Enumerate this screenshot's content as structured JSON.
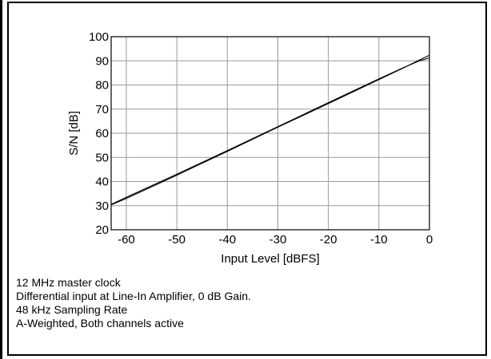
{
  "chart_data": {
    "type": "line",
    "title": "",
    "xlabel": "Input Level [dBFS]",
    "ylabel": "S/N [dB]",
    "xlim": [
      -63,
      0
    ],
    "ylim": [
      20,
      100
    ],
    "x_ticks": [
      -60,
      -50,
      -40,
      -30,
      -20,
      -10,
      0
    ],
    "y_ticks": [
      20,
      30,
      40,
      50,
      60,
      70,
      80,
      90,
      100
    ],
    "grid": true,
    "series": [
      {
        "x": [
          -63,
          -60,
          -50,
          -40,
          -30,
          -20,
          -10,
          -5,
          -2,
          0
        ],
        "y": [
          30.5,
          33.5,
          43,
          52.8,
          62.7,
          72.7,
          82.5,
          87.3,
          90,
          91.2
        ]
      },
      {
        "x": [
          -63,
          -60,
          -50,
          -40,
          -30,
          -20,
          -10,
          -5,
          -2,
          0
        ],
        "y": [
          30.3,
          33,
          42.6,
          52.5,
          62.5,
          72.3,
          82.2,
          87.2,
          90.3,
          92.3
        ]
      }
    ]
  },
  "notes": [
    "12 MHz master clock",
    "Differential input at Line-In Amplifier, 0 dB Gain.",
    "48 kHz Sampling Rate",
    "A-Weighted, Both channels active"
  ]
}
